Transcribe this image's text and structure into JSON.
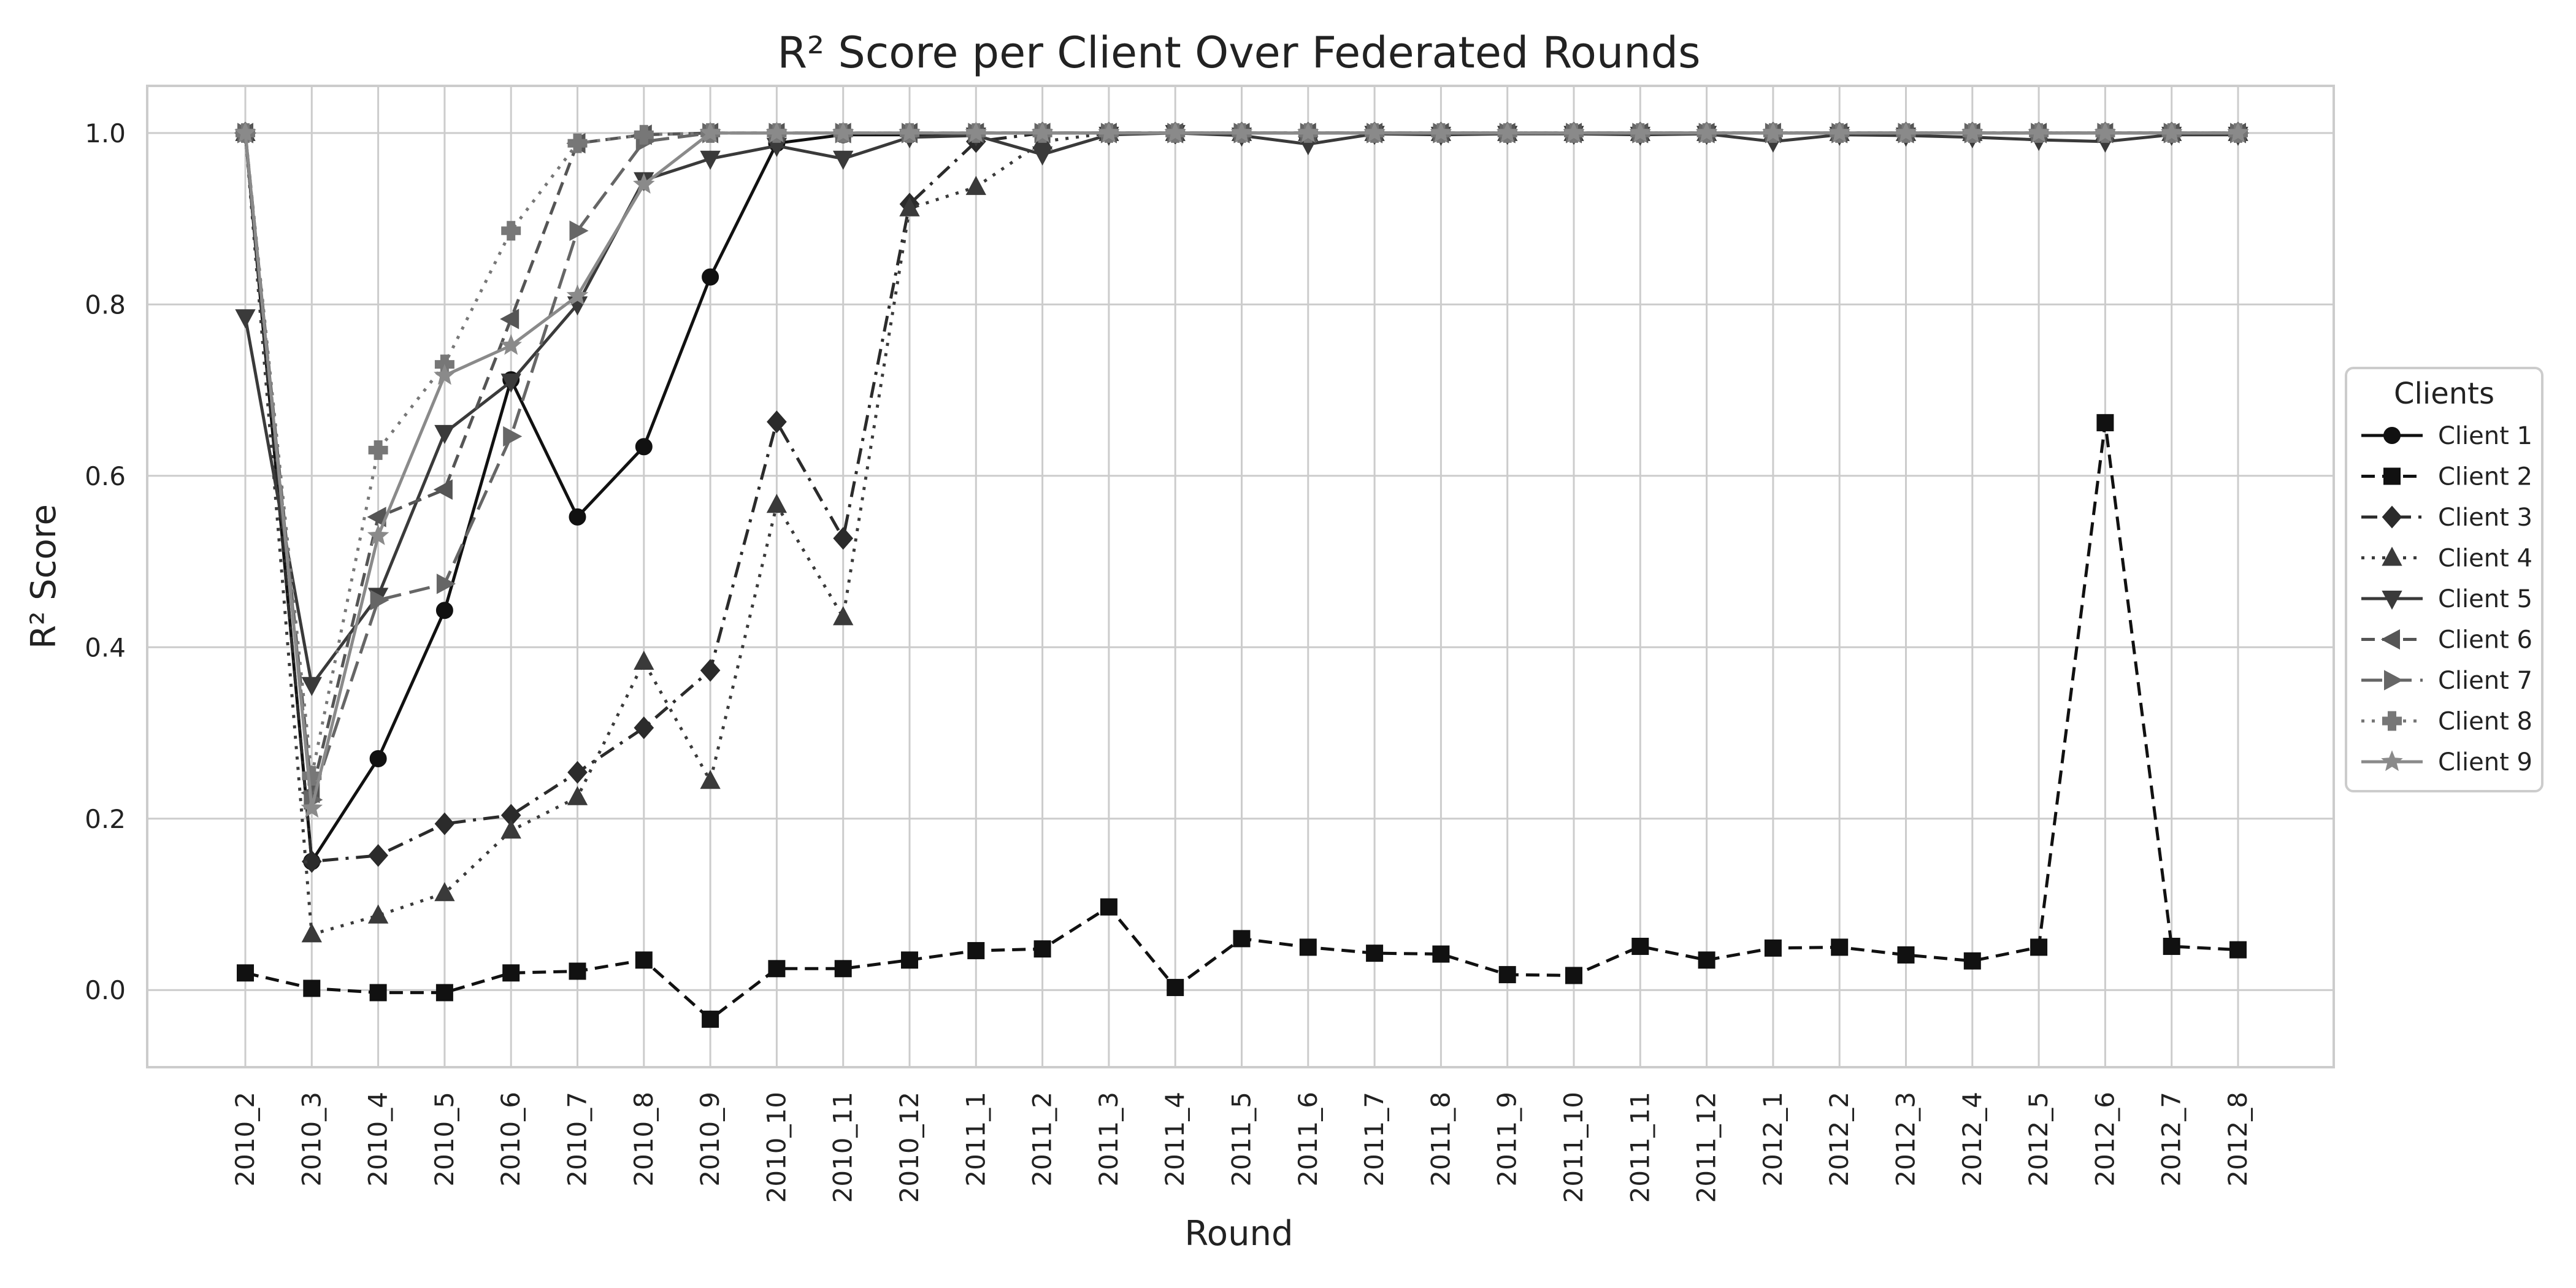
{
  "chart_data": {
    "type": "line",
    "title": "R² Score per Client Over Federated Rounds",
    "xlabel": "Round",
    "ylabel": "R² Score",
    "ylim": [
      -0.09,
      1.055
    ],
    "yticks": [
      "0.0",
      "0.2",
      "0.4",
      "0.6",
      "0.8",
      "1.0"
    ],
    "ytick_values": [
      0,
      0.2,
      0.4,
      0.6,
      0.8,
      1.0
    ],
    "grid": true,
    "legend_title": "Clients",
    "legend_position": "center-right outside",
    "categories": [
      "2010_2",
      "2010_3",
      "2010_4",
      "2010_5",
      "2010_6",
      "2010_7",
      "2010_8",
      "2010_9",
      "2010_10",
      "2010_11",
      "2010_12",
      "2011_1",
      "2011_2",
      "2011_3",
      "2011_4",
      "2011_5",
      "2011_6",
      "2011_7",
      "2011_8",
      "2011_9",
      "2011_10",
      "2011_11",
      "2011_12",
      "2012_1",
      "2012_2",
      "2012_3",
      "2012_4",
      "2012_5",
      "2012_6",
      "2012_7",
      "2012_8"
    ],
    "series": [
      {
        "name": "Client 1",
        "color": "#111111",
        "dash": "solid",
        "marker": "circle",
        "values": [
          1.0,
          0.15,
          0.27,
          0.443,
          0.712,
          0.552,
          0.634,
          0.832,
          0.988,
          0.998,
          0.998,
          1.0,
          1.0,
          1.0,
          1.0,
          1.0,
          1.0,
          1.0,
          1.0,
          1.0,
          1.0,
          1.0,
          1.0,
          1.0,
          1.0,
          1.0,
          1.0,
          1.0,
          1.0,
          1.0,
          1.0
        ]
      },
      {
        "name": "Client 2",
        "color": "#111111",
        "dash": "dashed",
        "marker": "square",
        "values": [
          0.02,
          0.002,
          -0.003,
          -0.003,
          0.02,
          0.022,
          0.035,
          -0.034,
          0.025,
          0.025,
          0.035,
          0.046,
          0.048,
          0.097,
          0.003,
          0.06,
          0.05,
          0.043,
          0.042,
          0.018,
          0.017,
          0.051,
          0.035,
          0.049,
          0.05,
          0.041,
          0.034,
          0.05,
          0.662,
          0.051,
          0.047
        ]
      },
      {
        "name": "Client 3",
        "color": "#2b2b2b",
        "dash": "dashdot",
        "marker": "diamond",
        "values": [
          1.0,
          0.15,
          0.157,
          0.194,
          0.204,
          0.254,
          0.306,
          0.373,
          0.663,
          0.527,
          0.917,
          0.99,
          1.0,
          1.0,
          1.0,
          1.0,
          1.0,
          1.0,
          1.0,
          1.0,
          1.0,
          1.0,
          1.0,
          1.0,
          1.0,
          1.0,
          1.0,
          1.0,
          1.0,
          1.0,
          1.0
        ]
      },
      {
        "name": "Client 4",
        "color": "#3a3a3a",
        "dash": "dotted",
        "marker": "triangle-up",
        "values": [
          1.0,
          0.065,
          0.087,
          0.113,
          0.186,
          0.225,
          0.383,
          0.244,
          0.566,
          0.435,
          0.912,
          0.937,
          0.99,
          1.0,
          1.0,
          1.0,
          1.0,
          1.0,
          1.0,
          1.0,
          1.0,
          1.0,
          1.0,
          1.0,
          1.0,
          1.0,
          1.0,
          1.0,
          1.0,
          1.0,
          1.0
        ]
      },
      {
        "name": "Client 5",
        "color": "#3a3a3a",
        "dash": "solid",
        "marker": "triangle-down",
        "values": [
          0.785,
          0.356,
          0.46,
          0.65,
          0.71,
          0.8,
          0.945,
          0.97,
          0.985,
          0.97,
          0.995,
          0.997,
          0.975,
          0.998,
          1.0,
          0.997,
          0.987,
          0.999,
          0.998,
          0.999,
          0.999,
          0.998,
          0.999,
          0.99,
          0.998,
          0.997,
          0.995,
          0.992,
          0.99,
          0.998,
          0.998
        ]
      },
      {
        "name": "Client 6",
        "color": "#555555",
        "dash": "dashed",
        "marker": "triangle-left",
        "values": [
          1.0,
          0.23,
          0.552,
          0.584,
          0.783,
          0.988,
          0.998,
          1.0,
          1.0,
          1.0,
          1.0,
          1.0,
          1.0,
          1.0,
          1.0,
          1.0,
          1.0,
          1.0,
          1.0,
          1.0,
          1.0,
          1.0,
          1.0,
          1.0,
          1.0,
          1.0,
          1.0,
          1.0,
          1.0,
          1.0,
          1.0
        ]
      },
      {
        "name": "Client 7",
        "color": "#666666",
        "dash": "longdash",
        "marker": "triangle-right",
        "values": [
          1.0,
          0.222,
          0.455,
          0.474,
          0.646,
          0.886,
          0.99,
          1.0,
          1.0,
          1.0,
          1.0,
          1.0,
          1.0,
          1.0,
          1.0,
          1.0,
          1.0,
          1.0,
          1.0,
          1.0,
          1.0,
          1.0,
          1.0,
          1.0,
          1.0,
          1.0,
          1.0,
          1.0,
          1.0,
          1.0,
          1.0
        ]
      },
      {
        "name": "Client 8",
        "color": "#777777",
        "dash": "dotted",
        "marker": "plus",
        "values": [
          1.0,
          0.25,
          0.63,
          0.73,
          0.886,
          0.988,
          0.998,
          1.0,
          1.0,
          1.0,
          1.0,
          1.0,
          1.0,
          1.0,
          1.0,
          1.0,
          1.0,
          1.0,
          1.0,
          1.0,
          1.0,
          1.0,
          1.0,
          1.0,
          1.0,
          1.0,
          1.0,
          1.0,
          1.0,
          1.0,
          1.0
        ]
      },
      {
        "name": "Client 9",
        "color": "#8a8a8a",
        "dash": "solid",
        "marker": "star",
        "values": [
          1.0,
          0.212,
          0.53,
          0.717,
          0.752,
          0.81,
          0.94,
          1.0,
          1.0,
          1.0,
          1.0,
          1.0,
          1.0,
          1.0,
          1.0,
          1.0,
          1.0,
          1.0,
          1.0,
          1.0,
          1.0,
          1.0,
          1.0,
          1.0,
          1.0,
          1.0,
          1.0,
          1.0,
          1.0,
          1.0,
          1.0
        ]
      }
    ]
  }
}
